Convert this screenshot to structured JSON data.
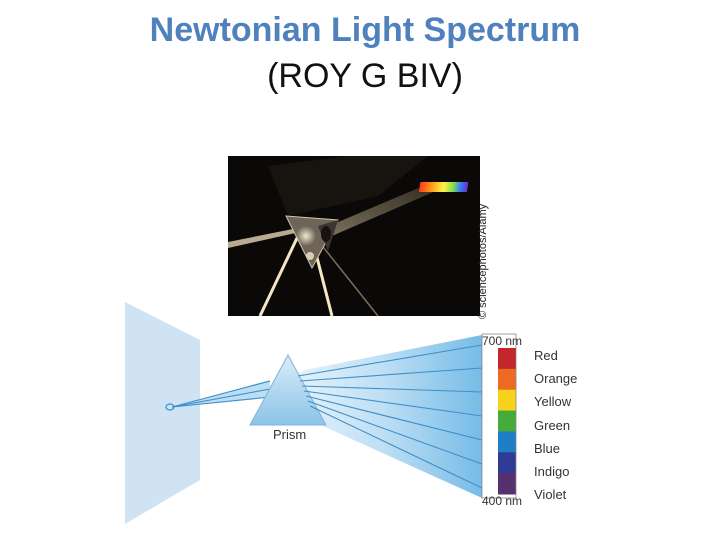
{
  "title": "Newtonian Light Spectrum",
  "subtitle": "(ROY G BIV)",
  "photo": {
    "credit": "© sciencephotos/Alamy"
  },
  "diagram": {
    "prism_label": "Prism",
    "top_wavelength": "700 nm",
    "bottom_wavelength": "400 nm",
    "colors": [
      {
        "label": "Red",
        "hex": "#c2262c"
      },
      {
        "label": "Orange",
        "hex": "#ee6a22"
      },
      {
        "label": "Yellow",
        "hex": "#f6d21d"
      },
      {
        "label": "Green",
        "hex": "#45ac3b"
      },
      {
        "label": "Blue",
        "hex": "#1f7ec4"
      },
      {
        "label": "Indigo",
        "hex": "#303b93"
      },
      {
        "label": "Violet",
        "hex": "#57306f"
      }
    ]
  },
  "palette": {
    "title_blue": "#4f81bd",
    "beam_blue": "#6fb8e6",
    "screen_blue": "#cfe3f3"
  }
}
